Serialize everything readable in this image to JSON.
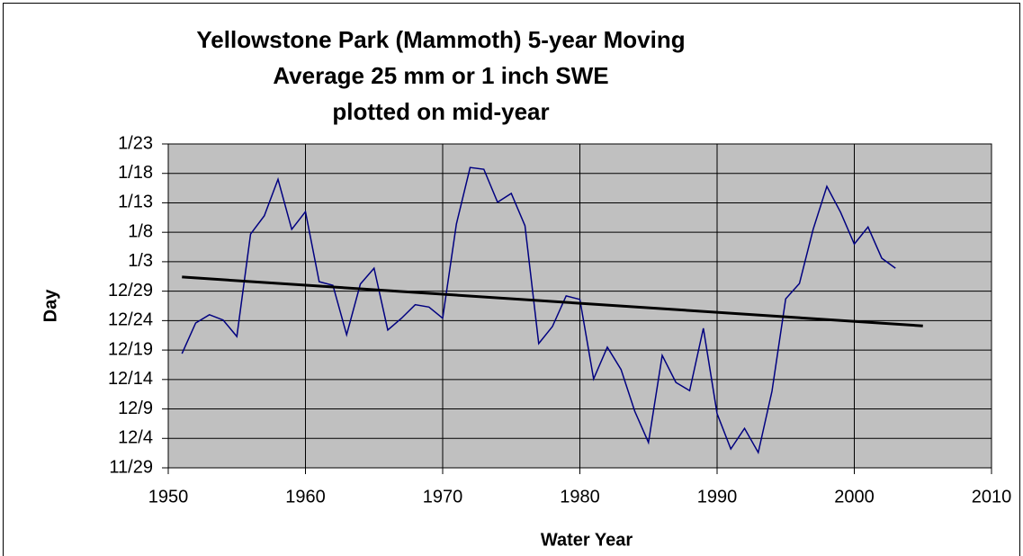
{
  "chart_data": {
    "type": "line",
    "title": [
      "Yellowstone Park (Mammoth) 5-year Moving",
      "Average 25 mm or 1 inch SWE",
      "plotted on mid-year"
    ],
    "x_label": "Water Year",
    "y_label": "Day",
    "xlim": [
      1950,
      2010
    ],
    "xticks": [
      1950,
      1960,
      1970,
      1980,
      1990,
      2000,
      2010
    ],
    "ylim": [
      60,
      115
    ],
    "yticks": [
      {
        "value": 60,
        "label": "11/29"
      },
      {
        "value": 65,
        "label": "12/4"
      },
      {
        "value": 70,
        "label": "12/9"
      },
      {
        "value": 75,
        "label": "12/14"
      },
      {
        "value": 80,
        "label": "12/19"
      },
      {
        "value": 85,
        "label": "12/24"
      },
      {
        "value": 90,
        "label": "12/29"
      },
      {
        "value": 95,
        "label": "1/3"
      },
      {
        "value": 100,
        "label": "1/8"
      },
      {
        "value": 105,
        "label": "1/13"
      },
      {
        "value": 110,
        "label": "1/18"
      },
      {
        "value": 115,
        "label": "1/23"
      }
    ],
    "grid": true,
    "plot_background": "#c0c0c0",
    "series": [
      {
        "color": "#000080",
        "width": 1.5,
        "x": [
          1951,
          1952,
          1953,
          1954,
          1955,
          1956,
          1957,
          1958,
          1959,
          1960,
          1961,
          1962,
          1963,
          1964,
          1965,
          1966,
          1967,
          1968,
          1969,
          1970,
          1971,
          1972,
          1973,
          1974,
          1975,
          1976,
          1977,
          1978,
          1979,
          1980,
          1981,
          1982,
          1983,
          1984,
          1985,
          1986,
          1987,
          1988,
          1989,
          1990,
          1991,
          1992,
          1993,
          1994,
          1995,
          1996,
          1997,
          1998,
          1999,
          2000,
          2001,
          2002,
          2003
        ],
        "values": [
          79.4,
          84.6,
          86.0,
          85.1,
          82.3,
          99.7,
          102.8,
          109.0,
          100.5,
          103.5,
          91.6,
          91.0,
          82.6,
          91.2,
          93.9,
          83.4,
          85.4,
          87.7,
          87.3,
          85.4,
          101.4,
          111.0,
          110.7,
          105.1,
          106.6,
          101.1,
          81.1,
          84.0,
          89.2,
          88.6,
          75.1,
          80.5,
          76.7,
          69.6,
          64.3,
          79.1,
          74.5,
          73.1,
          83.7,
          69.2,
          63.2,
          66.7,
          62.6,
          73.0,
          88.7,
          91.3,
          100.5,
          107.8,
          103.4,
          98.0,
          100.9,
          95.6,
          93.9
        ]
      },
      {
        "color": "#000000",
        "width": 3,
        "x": [
          1951,
          2005
        ],
        "values": [
          92.4,
          84.1
        ]
      }
    ]
  }
}
